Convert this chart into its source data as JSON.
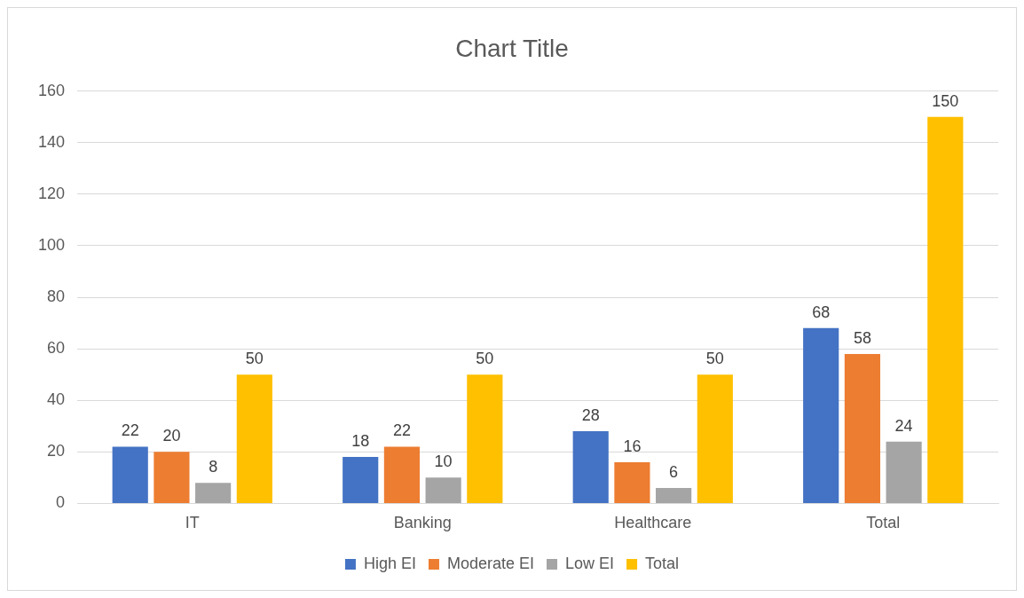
{
  "chart_data": {
    "type": "bar",
    "title": "Chart Title",
    "categories": [
      "IT",
      "Banking",
      "Healthcare",
      "Total"
    ],
    "series": [
      {
        "name": "High EI",
        "color": "#4472c4",
        "values": [
          22,
          18,
          28,
          68
        ]
      },
      {
        "name": "Moderate EI",
        "color": "#ed7d31",
        "values": [
          20,
          22,
          16,
          58
        ]
      },
      {
        "name": "Low EI",
        "color": "#a5a5a5",
        "values": [
          8,
          10,
          6,
          24
        ]
      },
      {
        "name": "Total",
        "color": "#ffc000",
        "values": [
          50,
          50,
          50,
          150
        ]
      }
    ],
    "ylim": [
      0,
      160
    ],
    "yticks": [
      0,
      20,
      40,
      60,
      80,
      100,
      120,
      140,
      160
    ],
    "grid": "y",
    "legend": "bottom",
    "data_labels": true
  }
}
